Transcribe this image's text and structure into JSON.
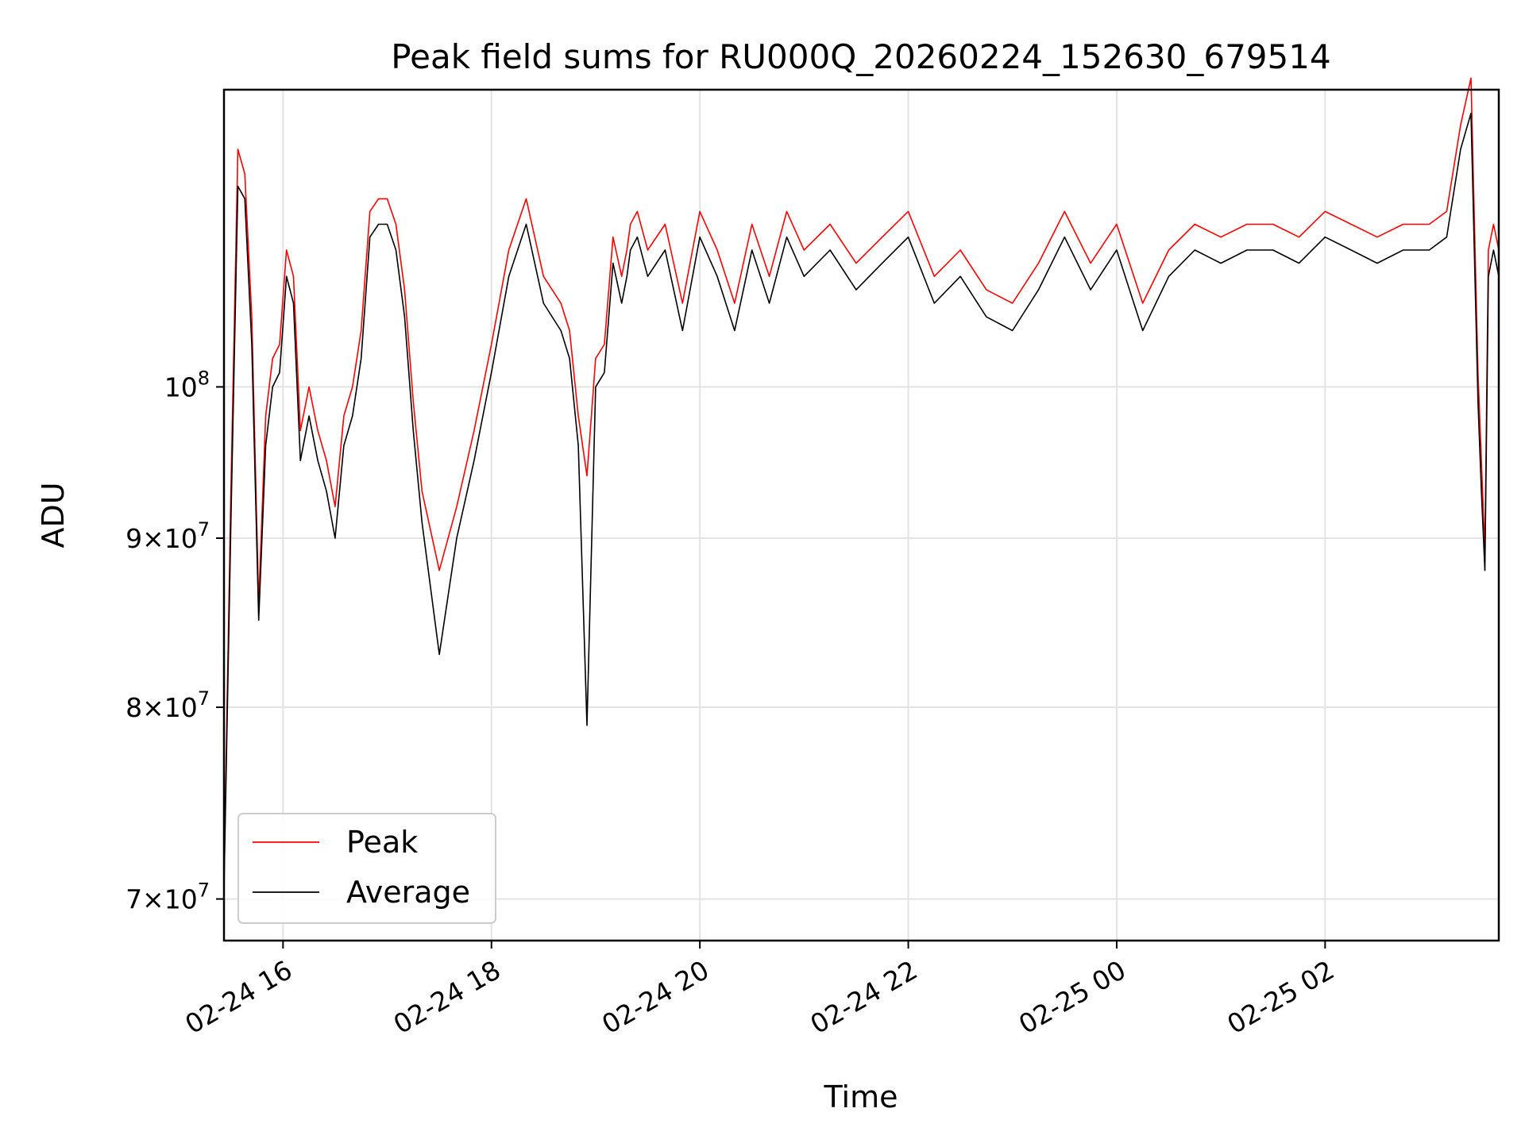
{
  "chart_data": {
    "type": "line",
    "title": "Peak field sums for RU000Q_20260224_152630_679514",
    "xlabel": "Time",
    "ylabel": "ADU",
    "yscale": "log",
    "ylim": [
      68000000,
      123000000
    ],
    "xlim": [
      "2026-02-24 15:26",
      "2026-02-25 03:40"
    ],
    "grid": true,
    "legend_position": "lower-left",
    "x_ticks": [
      {
        "value": "2026-02-24 16:00",
        "label": "02-24 16"
      },
      {
        "value": "2026-02-24 18:00",
        "label": "02-24 18"
      },
      {
        "value": "2026-02-24 20:00",
        "label": "02-24 20"
      },
      {
        "value": "2026-02-24 22:00",
        "label": "02-24 22"
      },
      {
        "value": "2026-02-25 00:00",
        "label": "02-25 00"
      },
      {
        "value": "2026-02-25 02:00",
        "label": "02-25 02"
      }
    ],
    "y_ticks": [
      {
        "value": 70000000,
        "base": "7",
        "exp": "7"
      },
      {
        "value": 80000000,
        "base": "8",
        "exp": "7"
      },
      {
        "value": 90000000,
        "base": "9",
        "exp": "7"
      },
      {
        "value": 100000000,
        "base": "",
        "exp": "8"
      }
    ],
    "x": [
      "2026-02-24 15:26",
      "2026-02-24 15:30",
      "2026-02-24 15:34",
      "2026-02-24 15:38",
      "2026-02-24 15:42",
      "2026-02-24 15:46",
      "2026-02-24 15:50",
      "2026-02-24 15:54",
      "2026-02-24 15:58",
      "2026-02-24 16:02",
      "2026-02-24 16:06",
      "2026-02-24 16:10",
      "2026-02-24 16:15",
      "2026-02-24 16:20",
      "2026-02-24 16:25",
      "2026-02-24 16:30",
      "2026-02-24 16:35",
      "2026-02-24 16:40",
      "2026-02-24 16:45",
      "2026-02-24 16:50",
      "2026-02-24 16:55",
      "2026-02-24 17:00",
      "2026-02-24 17:05",
      "2026-02-24 17:10",
      "2026-02-24 17:15",
      "2026-02-24 17:20",
      "2026-02-24 17:30",
      "2026-02-24 17:40",
      "2026-02-24 17:50",
      "2026-02-24 18:00",
      "2026-02-24 18:10",
      "2026-02-24 18:20",
      "2026-02-24 18:30",
      "2026-02-24 18:40",
      "2026-02-24 18:45",
      "2026-02-24 18:50",
      "2026-02-24 18:55",
      "2026-02-24 19:00",
      "2026-02-24 19:05",
      "2026-02-24 19:10",
      "2026-02-24 19:15",
      "2026-02-24 19:18",
      "2026-02-24 19:20",
      "2026-02-24 19:24",
      "2026-02-24 19:30",
      "2026-02-24 19:40",
      "2026-02-24 19:50",
      "2026-02-24 20:00",
      "2026-02-24 20:10",
      "2026-02-24 20:20",
      "2026-02-24 20:30",
      "2026-02-24 20:40",
      "2026-02-24 20:50",
      "2026-02-24 21:00",
      "2026-02-24 21:15",
      "2026-02-24 21:30",
      "2026-02-24 21:45",
      "2026-02-24 22:00",
      "2026-02-24 22:15",
      "2026-02-24 22:30",
      "2026-02-24 22:45",
      "2026-02-24 23:00",
      "2026-02-24 23:15",
      "2026-02-24 23:30",
      "2026-02-24 23:45",
      "2026-02-25 00:00",
      "2026-02-25 00:15",
      "2026-02-25 00:30",
      "2026-02-25 00:45",
      "2026-02-25 01:00",
      "2026-02-25 01:15",
      "2026-02-25 01:30",
      "2026-02-25 01:45",
      "2026-02-25 02:00",
      "2026-02-25 02:15",
      "2026-02-25 02:30",
      "2026-02-25 02:45",
      "2026-02-25 03:00",
      "2026-02-25 03:10",
      "2026-02-25 03:18",
      "2026-02-25 03:24",
      "2026-02-25 03:28",
      "2026-02-25 03:30",
      "2026-02-25 03:32",
      "2026-02-25 03:34",
      "2026-02-25 03:37",
      "2026-02-25 03:40"
    ],
    "series": [
      {
        "name": "Peak",
        "color": "#ff0000",
        "values": [
          71000000,
          93000000,
          118000000,
          116000000,
          105000000,
          86000000,
          98000000,
          102000000,
          103000000,
          110000000,
          108000000,
          97000000,
          100000000,
          97000000,
          95000000,
          92000000,
          98000000,
          100000000,
          104000000,
          113000000,
          114000000,
          114000000,
          112000000,
          107000000,
          99000000,
          93000000,
          88000000,
          92000000,
          97000000,
          103000000,
          110000000,
          114000000,
          108000000,
          106000000,
          104000000,
          98000000,
          94000000,
          102000000,
          103000000,
          111000000,
          108000000,
          110000000,
          112000000,
          113000000,
          110000000,
          112000000,
          106000000,
          113000000,
          110000000,
          106000000,
          112000000,
          108000000,
          113000000,
          110000000,
          112000000,
          109000000,
          111000000,
          113000000,
          108000000,
          110000000,
          107000000,
          106000000,
          109000000,
          113000000,
          109000000,
          112000000,
          106000000,
          110000000,
          112000000,
          111000000,
          112000000,
          112000000,
          111000000,
          113000000,
          112000000,
          111000000,
          112000000,
          112000000,
          113000000,
          120000000,
          124000000,
          101000000,
          95000000,
          89000000,
          110000000,
          112000000,
          110000000
        ]
      },
      {
        "name": "Average",
        "color": "#000000",
        "values": [
          70500000,
          91000000,
          115000000,
          114000000,
          103000000,
          85000000,
          96000000,
          100000000,
          101000000,
          108000000,
          106000000,
          95000000,
          98000000,
          95000000,
          93000000,
          90000000,
          96000000,
          98000000,
          102000000,
          111000000,
          112000000,
          112000000,
          110000000,
          105000000,
          97000000,
          91000000,
          83000000,
          90000000,
          95000000,
          101000000,
          108000000,
          112000000,
          106000000,
          104000000,
          102000000,
          96000000,
          79000000,
          100000000,
          101000000,
          109000000,
          106000000,
          108000000,
          110000000,
          111000000,
          108000000,
          110000000,
          104000000,
          111000000,
          108000000,
          104000000,
          110000000,
          106000000,
          111000000,
          108000000,
          110000000,
          107000000,
          109000000,
          111000000,
          106000000,
          108000000,
          105000000,
          104000000,
          107000000,
          111000000,
          107000000,
          110000000,
          104000000,
          108000000,
          110000000,
          109000000,
          110000000,
          110000000,
          109000000,
          111000000,
          110000000,
          109000000,
          110000000,
          110000000,
          111000000,
          118000000,
          121000000,
          99000000,
          93000000,
          88000000,
          108000000,
          110000000,
          108000000
        ]
      }
    ]
  }
}
